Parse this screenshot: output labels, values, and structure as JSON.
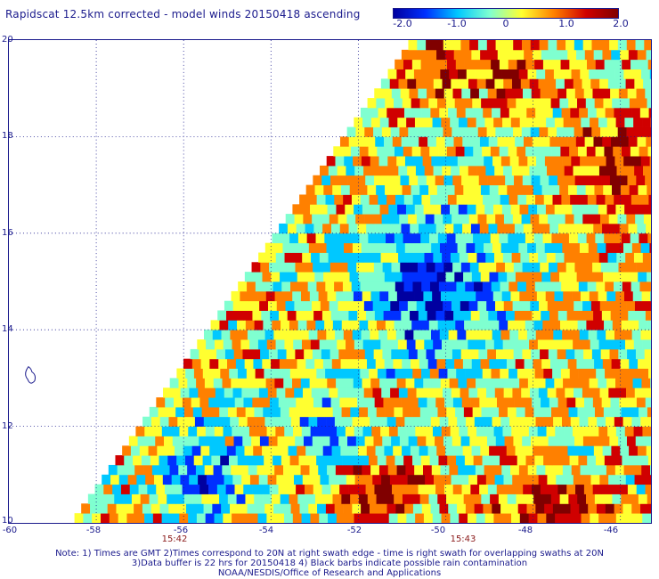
{
  "title": "Rapidscat 12.5km corrected - model winds 20150418 ascending",
  "colorbar": {
    "ticks": [
      "-2.0",
      "-1.0",
      "0",
      "1.0",
      "2.0"
    ],
    "colors": [
      "#0000a0",
      "#0030ff",
      "#00c8ff",
      "#7fffd0",
      "#ffff30",
      "#ff8000",
      "#d00000",
      "#800000"
    ]
  },
  "map": {
    "lat_labels": [
      "20",
      "18",
      "16",
      "14",
      "12",
      "10"
    ],
    "lon_labels": [
      "-60",
      "-58",
      "-56",
      "-54",
      "-52",
      "-50",
      "-48",
      "-46"
    ],
    "lat_range": [
      10,
      20
    ],
    "lon_range": [
      -60,
      -45.3
    ],
    "grid": "dotted",
    "pass_times": [
      {
        "label": "15:42",
        "lon": -56
      },
      {
        "label": "15:43",
        "lon": -49.5
      }
    ]
  },
  "notes": {
    "line1": "Note: 1) Times are GMT 2)Times correspond to 20N at right swath edge - time is right swath for overlapping swaths at 20N",
    "line2": "3)Data buffer is 22 hrs for 20150418 4) Black barbs indicate possible rain contamination",
    "line3": "NOAA/NESDIS/Office of Research and Applications"
  }
}
